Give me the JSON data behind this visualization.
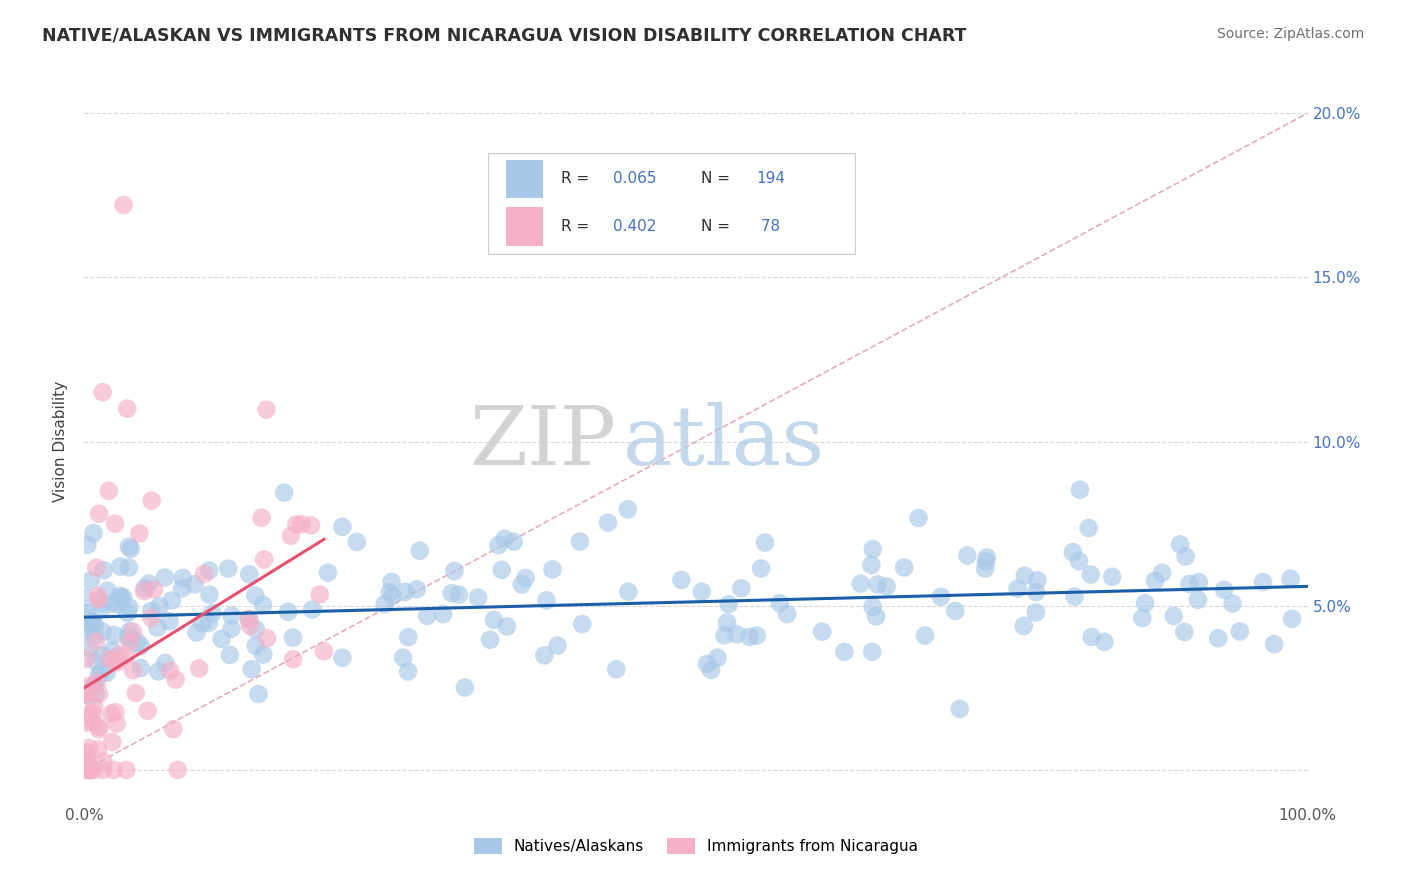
{
  "title": "NATIVE/ALASKAN VS IMMIGRANTS FROM NICARAGUA VISION DISABILITY CORRELATION CHART",
  "source": "Source: ZipAtlas.com",
  "ylabel": "Vision Disability",
  "xlim": [
    0,
    100
  ],
  "ylim": [
    -1,
    21
  ],
  "blue_color": "#a8c8e8",
  "pink_color": "#f4b0c8",
  "blue_line_color": "#1a5fa8",
  "pink_line_color": "#e85070",
  "diag_line_color": "#e8a0b0",
  "legend_label1": "Natives/Alaskans",
  "legend_label2": "Immigrants from Nicaragua",
  "watermark_zip": "ZIP",
  "watermark_atlas": "atlas",
  "background_color": "#ffffff",
  "grid_color": "#d8d8d8",
  "title_color": "#303030",
  "source_color": "#707070",
  "tick_color": "#4472c4",
  "ylabel_color": "#404040",
  "legend_text_color": "#303030",
  "legend_value_color": "#4472c4"
}
